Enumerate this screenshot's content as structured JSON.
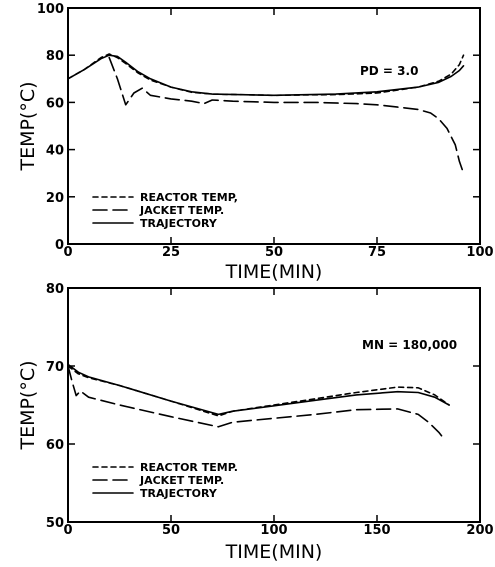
{
  "chart_data": [
    {
      "type": "line",
      "xlabel": "TIME(MIN)",
      "ylabel": "TEMP(°C)",
      "xlim": [
        0,
        100
      ],
      "ylim": [
        0,
        100
      ],
      "xticks": [
        0,
        25,
        50,
        75,
        100
      ],
      "yticks": [
        0,
        20,
        40,
        60,
        80,
        100
      ],
      "xtick_labels": [
        "0",
        "25",
        "50",
        "75",
        "100"
      ],
      "ytick_labels": [
        "0",
        "20",
        "40",
        "60",
        "80",
        "100"
      ],
      "annotation": "PD = 3.0",
      "grid": false,
      "legend_position": "bottom-left",
      "series": [
        {
          "name": "REACTOR TEMP,",
          "dash": "short",
          "x": [
            0,
            4,
            8,
            10,
            12,
            14,
            17,
            20,
            25,
            30,
            35,
            50,
            65,
            75,
            85,
            90,
            93,
            95,
            96
          ],
          "y": [
            70,
            74,
            79,
            80.5,
            79,
            76.5,
            72.5,
            69.5,
            66.5,
            64.3,
            63.5,
            63,
            63.3,
            64,
            66.5,
            69,
            72,
            76,
            80
          ]
        },
        {
          "name": "JACKET TEMP.",
          "dash": "long",
          "x": [
            10,
            12,
            14,
            16,
            18,
            20,
            25,
            30,
            33,
            35,
            40,
            50,
            60,
            70,
            75,
            80,
            85,
            88,
            90,
            92,
            94,
            95,
            96
          ],
          "y": [
            79,
            70,
            59,
            64,
            66,
            63,
            61.5,
            60.5,
            59.5,
            61,
            60.5,
            60,
            60,
            59.5,
            59,
            58,
            57,
            55.5,
            53,
            49,
            42,
            35,
            30
          ]
        },
        {
          "name": "TRAJECTORY",
          "dash": "solid",
          "x": [
            0,
            4,
            8,
            10,
            12,
            14,
            17,
            20,
            25,
            30,
            35,
            50,
            65,
            75,
            85,
            90,
            93,
            95,
            96
          ],
          "y": [
            70,
            74,
            78.5,
            80,
            79.5,
            77,
            73,
            70,
            66.5,
            64.5,
            63.5,
            63,
            63.5,
            64.5,
            66.5,
            68.5,
            71,
            73.5,
            75.5
          ]
        }
      ]
    },
    {
      "type": "line",
      "xlabel": "TIME(MIN)",
      "ylabel": "TEMP(°C)",
      "xlim": [
        0,
        200
      ],
      "ylim": [
        50,
        80
      ],
      "xticks": [
        0,
        50,
        100,
        150,
        200
      ],
      "yticks": [
        50,
        60,
        70,
        80
      ],
      "xtick_labels": [
        "0",
        "50",
        "100",
        "150",
        "200"
      ],
      "ytick_labels": [
        "50",
        "60",
        "70",
        "80"
      ],
      "annotation": "MN = 180,000",
      "grid": false,
      "legend_position": "bottom-left",
      "series": [
        {
          "name": "REACTOR TEMP.",
          "dash": "short",
          "x": [
            0,
            5,
            10,
            25,
            50,
            73,
            80,
            100,
            120,
            140,
            160,
            170,
            178,
            185
          ],
          "y": [
            70,
            69,
            68.5,
            67.5,
            65.5,
            63.6,
            64.2,
            65,
            65.8,
            66.6,
            67.3,
            67.2,
            66.3,
            65
          ]
        },
        {
          "name": "JACKET TEMP.",
          "dash": "long",
          "x": [
            0,
            2,
            4,
            6,
            10,
            25,
            50,
            73,
            80,
            100,
            120,
            140,
            160,
            170,
            175,
            180,
            183
          ],
          "y": [
            70,
            68,
            66.2,
            66.8,
            66,
            65,
            63.5,
            62.2,
            62.8,
            63.3,
            63.8,
            64.4,
            64.5,
            63.8,
            62.8,
            61.5,
            60.5
          ]
        },
        {
          "name": "TRAJECTORY",
          "dash": "solid",
          "x": [
            0,
            5,
            10,
            25,
            50,
            73,
            80,
            100,
            120,
            140,
            160,
            170,
            178,
            185
          ],
          "y": [
            70.2,
            69.2,
            68.6,
            67.5,
            65.5,
            63.8,
            64.2,
            64.9,
            65.6,
            66.3,
            66.7,
            66.6,
            66,
            65
          ]
        }
      ]
    }
  ]
}
